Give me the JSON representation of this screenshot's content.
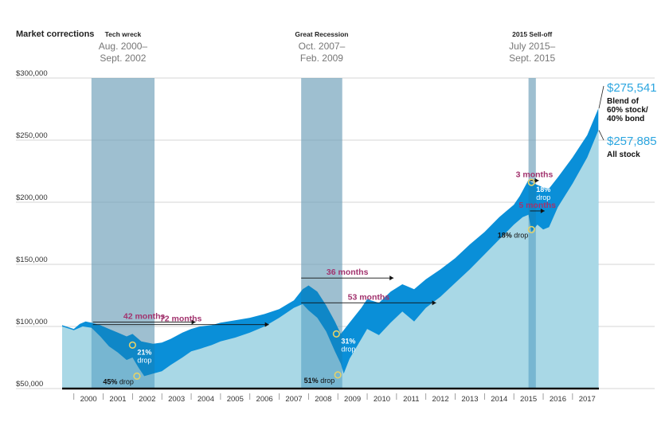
{
  "chart_data": {
    "type": "area",
    "title": "Market corrections",
    "series": [
      {
        "name": "Blend of 60% stock/ 40% bond",
        "color": "#0a8fd8"
      },
      {
        "name": "All stock",
        "color": "#a9d8e6"
      }
    ],
    "x_ticks": [
      "2000",
      "2001",
      "2002",
      "2003",
      "2004",
      "2005",
      "2006",
      "2007",
      "2008",
      "2009",
      "2010",
      "2011",
      "2012",
      "2013",
      "2014",
      "2015",
      "2016",
      "2017"
    ],
    "xlim": [
      1999.6,
      2017.9
    ],
    "y_ticks": [
      {
        "value": 50000,
        "label": "$50,000"
      },
      {
        "value": 100000,
        "label": "$100,000"
      },
      {
        "value": 150000,
        "label": "$150,000"
      },
      {
        "value": 200000,
        "label": "$200,000"
      },
      {
        "value": 250000,
        "label": "$250,000"
      },
      {
        "value": 300000,
        "label": "$300,000"
      }
    ],
    "ylim": [
      50000,
      300000
    ],
    "blend_points": [
      [
        1999.6,
        101000
      ],
      [
        2000.0,
        98000
      ],
      [
        2000.2,
        102000
      ],
      [
        2000.4,
        104000
      ],
      [
        2000.6,
        103000
      ],
      [
        2000.9,
        101000
      ],
      [
        2001.2,
        98000
      ],
      [
        2001.5,
        95000
      ],
      [
        2001.8,
        92000
      ],
      [
        2002.0,
        94000
      ],
      [
        2002.3,
        88000
      ],
      [
        2002.7,
        86000
      ],
      [
        2003.0,
        87000
      ],
      [
        2003.3,
        90000
      ],
      [
        2003.7,
        95000
      ],
      [
        2004.0,
        98000
      ],
      [
        2004.3,
        100000
      ],
      [
        2004.7,
        101000
      ],
      [
        2005.0,
        103000
      ],
      [
        2005.5,
        105000
      ],
      [
        2006.0,
        107000
      ],
      [
        2006.5,
        110000
      ],
      [
        2007.0,
        114000
      ],
      [
        2007.5,
        121000
      ],
      [
        2007.8,
        130000
      ],
      [
        2008.0,
        133000
      ],
      [
        2008.3,
        128000
      ],
      [
        2008.6,
        117000
      ],
      [
        2008.9,
        104000
      ],
      [
        2009.1,
        94000
      ],
      [
        2009.4,
        103000
      ],
      [
        2009.8,
        115000
      ],
      [
        2010.0,
        122000
      ],
      [
        2010.4,
        119000
      ],
      [
        2010.8,
        128000
      ],
      [
        2011.2,
        134000
      ],
      [
        2011.6,
        130000
      ],
      [
        2012.0,
        138000
      ],
      [
        2012.5,
        146000
      ],
      [
        2013.0,
        155000
      ],
      [
        2013.5,
        166000
      ],
      [
        2014.0,
        176000
      ],
      [
        2014.5,
        188000
      ],
      [
        2015.0,
        198000
      ],
      [
        2015.2,
        205000
      ],
      [
        2015.5,
        218000
      ],
      [
        2015.6,
        216000
      ],
      [
        2015.8,
        214000
      ],
      [
        2016.0,
        212000
      ],
      [
        2016.2,
        211000
      ],
      [
        2016.5,
        220000
      ],
      [
        2017.0,
        236000
      ],
      [
        2017.5,
        254000
      ],
      [
        2017.88,
        275541
      ]
    ],
    "stock_points": [
      [
        1999.6,
        100000
      ],
      [
        2000.0,
        97000
      ],
      [
        2000.3,
        100000
      ],
      [
        2000.6,
        99000
      ],
      [
        2000.9,
        92000
      ],
      [
        2001.2,
        84000
      ],
      [
        2001.5,
        79000
      ],
      [
        2001.8,
        73000
      ],
      [
        2002.0,
        75000
      ],
      [
        2002.2,
        67000
      ],
      [
        2002.4,
        60000
      ],
      [
        2002.7,
        62000
      ],
      [
        2003.0,
        64000
      ],
      [
        2003.3,
        69000
      ],
      [
        2003.7,
        75000
      ],
      [
        2004.0,
        80000
      ],
      [
        2004.3,
        82000
      ],
      [
        2004.7,
        85000
      ],
      [
        2005.0,
        88000
      ],
      [
        2005.5,
        91000
      ],
      [
        2006.0,
        95000
      ],
      [
        2006.5,
        100000
      ],
      [
        2007.0,
        107000
      ],
      [
        2007.5,
        115000
      ],
      [
        2007.8,
        118000
      ],
      [
        2008.0,
        113000
      ],
      [
        2008.3,
        107000
      ],
      [
        2008.6,
        96000
      ],
      [
        2008.9,
        80000
      ],
      [
        2009.1,
        70000
      ],
      [
        2009.2,
        62000
      ],
      [
        2009.4,
        74000
      ],
      [
        2009.8,
        90000
      ],
      [
        2010.0,
        98000
      ],
      [
        2010.4,
        93000
      ],
      [
        2010.8,
        103000
      ],
      [
        2011.2,
        112000
      ],
      [
        2011.6,
        104000
      ],
      [
        2012.0,
        115000
      ],
      [
        2012.5,
        124000
      ],
      [
        2013.0,
        135000
      ],
      [
        2013.5,
        146000
      ],
      [
        2014.0,
        158000
      ],
      [
        2014.5,
        170000
      ],
      [
        2015.0,
        182000
      ],
      [
        2015.3,
        188000
      ],
      [
        2015.5,
        190000
      ],
      [
        2015.6,
        176000
      ],
      [
        2015.8,
        182000
      ],
      [
        2016.0,
        178000
      ],
      [
        2016.2,
        180000
      ],
      [
        2016.5,
        196000
      ],
      [
        2017.0,
        215000
      ],
      [
        2017.5,
        236000
      ],
      [
        2017.88,
        257885
      ]
    ],
    "correction_periods": [
      {
        "name": "Tech wreck",
        "dates": [
          "Aug. 2000–",
          "Sept. 2002"
        ],
        "start": 2000.6,
        "end": 2002.75
      },
      {
        "name": "Great Recession",
        "dates": [
          "Oct. 2007–",
          "Feb. 2009"
        ],
        "start": 2007.75,
        "end": 2009.15
      },
      {
        "name": "2015 Sell-off",
        "dates": [
          "July 2015–",
          "Sept. 2015"
        ],
        "start": 2015.5,
        "end": 2015.75
      }
    ],
    "drops": [
      {
        "pct": "21%",
        "label": "drop",
        "x": 2002.0,
        "y": 85000
      },
      {
        "pct": "45%",
        "label": "drop",
        "x": 2002.15,
        "y": 60000
      },
      {
        "pct": "31%",
        "label": "drop",
        "x": 2008.95,
        "y": 94000
      },
      {
        "pct": "51%",
        "label": "drop",
        "x": 2009.0,
        "y": 61000
      },
      {
        "pct": "18%",
        "label": "drop",
        "x": 2015.6,
        "y": 216000
      },
      {
        "pct": "18%",
        "label": "drop",
        "x": 2015.6,
        "y": 178000
      }
    ],
    "recoveries": [
      {
        "label": "42 months",
        "start": 2000.65,
        "end": 2004.15,
        "y": 103500
      },
      {
        "label": "72 months",
        "start": 2000.65,
        "end": 2006.65,
        "y": 101500
      },
      {
        "label": "36 months",
        "start": 2007.75,
        "end": 2010.9,
        "y": 139000
      },
      {
        "label": "53 months",
        "start": 2007.75,
        "end": 2012.35,
        "y": 119000
      },
      {
        "label": "3 months",
        "start": 2015.55,
        "end": 2015.85,
        "y": 217500
      },
      {
        "label": "5 months",
        "start": 2015.55,
        "end": 2016.05,
        "y": 193000
      }
    ],
    "end_values": [
      {
        "value": "$275,541",
        "label": "Blend of 60% stock/ 40% bond"
      },
      {
        "value": "$257,885",
        "label": "All stock"
      }
    ]
  },
  "colors": {
    "blend": "#0a8fd8",
    "stock": "#a9d8e6",
    "period": "#dcdcdc",
    "recovery": "#a2336e",
    "value_text": "#2ca6e0",
    "marker_light": "#e4d26a"
  }
}
